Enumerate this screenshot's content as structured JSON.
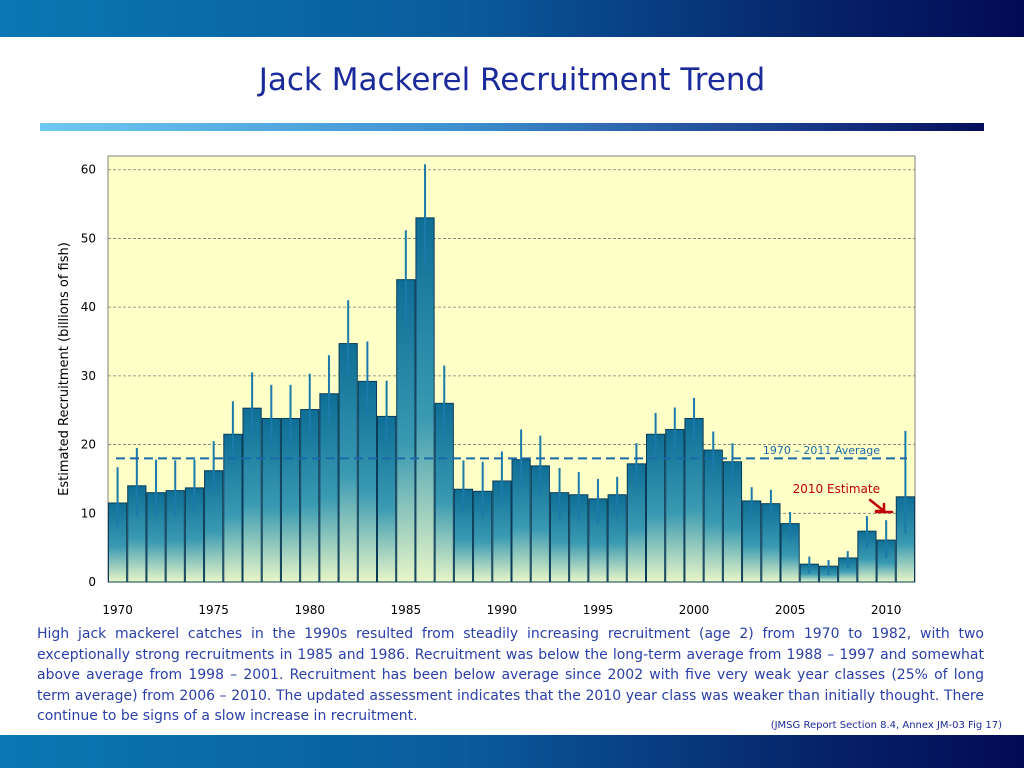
{
  "slide": {
    "title": "Jack Mackerel Recruitment Trend",
    "caption": "High jack mackerel catches in the 1990s resulted from steadily increasing recruitment (age 2) from 1970 to 1982, with two exceptionally strong recruitments in 1985 and 1986. Recruitment was below the long-term average from 1988 – 1997 and somewhat above average from 1998 – 2001.  Recruitment has been below average since 2002 with five very weak year classes (25% of long term average) from 2006 – 2010.  The updated assessment indicates that the 2010 year class was weaker than initially thought.  There continue to be signs of a slow increase in recruitment.",
    "source": "(JMSG Report Section 8.4, Annex JM-03  Fig 17)"
  },
  "colors": {
    "band": "#0a5c9c",
    "title": "#1b2a9a",
    "plot_background": "#ffffc8",
    "bar_top": "#0e6e96",
    "bar_bottom": "#e8f6c8",
    "bar_edge": "#0a3c5a",
    "error_bar": "#1a7aaa",
    "average_line": "#1a6aaa",
    "estimate_text": "#c00000"
  },
  "chart_data": {
    "type": "bar",
    "ylabel": "Estimated Recruitment (billions of fish)",
    "xlabel": "",
    "ylim": [
      0,
      62
    ],
    "yticks": [
      0,
      10,
      20,
      30,
      40,
      50,
      60
    ],
    "xticks": [
      1970,
      1975,
      1980,
      1985,
      1990,
      1995,
      2000,
      2005,
      2010
    ],
    "grid": true,
    "years": [
      1970,
      1971,
      1972,
      1973,
      1974,
      1975,
      1976,
      1977,
      1978,
      1979,
      1980,
      1981,
      1982,
      1983,
      1984,
      1985,
      1986,
      1987,
      1988,
      1989,
      1990,
      1991,
      1992,
      1993,
      1994,
      1995,
      1996,
      1997,
      1998,
      1999,
      2000,
      2001,
      2002,
      2003,
      2004,
      2005,
      2006,
      2007,
      2008,
      2009,
      2010,
      2011
    ],
    "values": [
      11.5,
      14.0,
      13.0,
      13.3,
      13.7,
      16.2,
      21.5,
      25.3,
      23.8,
      23.8,
      25.1,
      27.4,
      34.7,
      29.2,
      24.1,
      44.0,
      53.0,
      26.0,
      13.5,
      13.2,
      14.7,
      17.8,
      16.9,
      13.0,
      12.7,
      12.1,
      12.7,
      17.2,
      21.5,
      22.2,
      23.8,
      19.2,
      17.5,
      11.8,
      11.4,
      8.5,
      2.6,
      2.3,
      3.5,
      7.4,
      6.1,
      12.4
    ],
    "errors": [
      [
        8,
        16.7
      ],
      [
        9.5,
        19.5
      ],
      [
        9.5,
        17.8
      ],
      [
        9.5,
        17.7
      ],
      [
        10,
        17.8
      ],
      [
        13,
        20.5
      ],
      [
        17,
        26.3
      ],
      [
        21,
        30.5
      ],
      [
        19.5,
        28.7
      ],
      [
        19.5,
        28.7
      ],
      [
        21,
        30.3
      ],
      [
        23,
        33
      ],
      [
        30,
        41
      ],
      [
        24,
        35
      ],
      [
        20,
        29.3
      ],
      [
        37,
        51.2
      ],
      [
        46,
        60.8
      ],
      [
        21,
        31.5
      ],
      [
        10,
        17.7
      ],
      [
        9.5,
        17.5
      ],
      [
        11,
        19
      ],
      [
        14,
        22.2
      ],
      [
        12.5,
        21.3
      ],
      [
        9,
        16.6
      ],
      [
        9,
        16
      ],
      [
        8.5,
        15
      ],
      [
        9.5,
        15.3
      ],
      [
        13.5,
        20.2
      ],
      [
        17.5,
        24.6
      ],
      [
        18,
        25.4
      ],
      [
        20,
        26.8
      ],
      [
        16,
        21.9
      ],
      [
        14,
        20.2
      ],
      [
        9,
        13.8
      ],
      [
        9,
        13.4
      ],
      [
        6,
        10.2
      ],
      [
        1.2,
        3.7
      ],
      [
        1,
        3.2
      ],
      [
        2,
        4.5
      ],
      [
        5,
        9.6
      ],
      [
        3.5,
        9
      ],
      [
        7,
        22
      ]
    ],
    "average": {
      "label": "1970 – 2011 Average",
      "value": 18
    },
    "annotation": {
      "label": "2010 Estimate",
      "year": 2010
    }
  }
}
